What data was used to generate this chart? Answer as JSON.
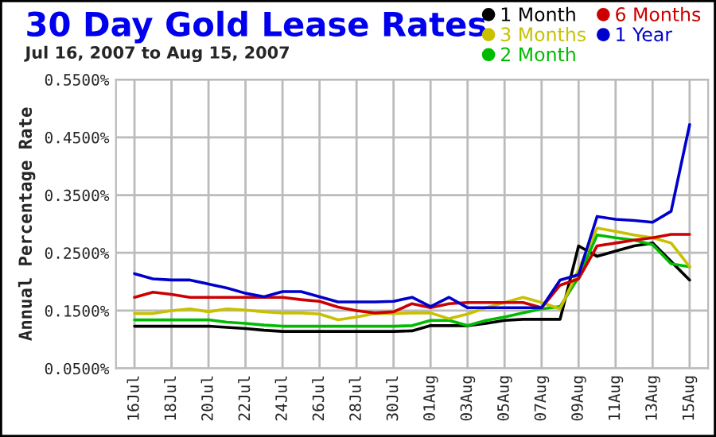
{
  "chart_data": {
    "type": "line",
    "title": "30 Day Gold Lease Rates",
    "subtitle": "Jul 16, 2007 to Aug 15, 2007",
    "ylabel": "Annual Percentage Rate",
    "x": [
      "2007-07-16",
      "2007-07-17",
      "2007-07-18",
      "2007-07-19",
      "2007-07-20",
      "2007-07-21",
      "2007-07-22",
      "2007-07-23",
      "2007-07-24",
      "2007-07-25",
      "2007-07-26",
      "2007-07-27",
      "2007-07-28",
      "2007-07-29",
      "2007-07-30",
      "2007-07-31",
      "2007-08-01",
      "2007-08-02",
      "2007-08-03",
      "2007-08-04",
      "2007-08-05",
      "2007-08-06",
      "2007-08-07",
      "2007-08-08",
      "2007-08-09",
      "2007-08-10",
      "2007-08-11",
      "2007-08-12",
      "2007-08-13",
      "2007-08-14",
      "2007-08-15"
    ],
    "series": [
      {
        "name": "1 Month",
        "color": "#000000",
        "values": [
          0.123,
          0.123,
          0.123,
          0.123,
          0.123,
          0.121,
          0.119,
          0.116,
          0.114,
          0.114,
          0.114,
          0.114,
          0.114,
          0.114,
          0.114,
          0.115,
          0.124,
          0.124,
          0.124,
          0.128,
          0.133,
          0.135,
          0.135,
          0.135,
          0.262,
          0.244,
          0.253,
          0.262,
          0.267,
          0.235,
          0.203
        ]
      },
      {
        "name": "2 Month",
        "color": "#00bb00",
        "values": [
          0.134,
          0.134,
          0.134,
          0.134,
          0.134,
          0.13,
          0.128,
          0.125,
          0.123,
          0.123,
          0.123,
          0.123,
          0.123,
          0.123,
          0.123,
          0.124,
          0.133,
          0.133,
          0.124,
          0.133,
          0.139,
          0.146,
          0.153,
          0.157,
          0.208,
          0.281,
          0.276,
          0.272,
          0.264,
          0.231,
          0.226
        ]
      },
      {
        "name": "3 Months",
        "color": "#c8c000",
        "values": [
          0.145,
          0.145,
          0.15,
          0.153,
          0.148,
          0.153,
          0.151,
          0.148,
          0.146,
          0.146,
          0.144,
          0.134,
          0.139,
          0.145,
          0.145,
          0.146,
          0.146,
          0.136,
          0.144,
          0.155,
          0.164,
          0.173,
          0.164,
          0.153,
          0.221,
          0.293,
          0.287,
          0.281,
          0.276,
          0.267,
          0.226
        ]
      },
      {
        "name": "6 Months",
        "color": "#cc0000",
        "values": [
          0.173,
          0.182,
          0.178,
          0.173,
          0.173,
          0.173,
          0.173,
          0.173,
          0.173,
          0.169,
          0.166,
          0.156,
          0.15,
          0.146,
          0.148,
          0.162,
          0.155,
          0.162,
          0.164,
          0.164,
          0.164,
          0.164,
          0.155,
          0.194,
          0.205,
          0.262,
          0.267,
          0.272,
          0.276,
          0.282,
          0.282
        ]
      },
      {
        "name": "1 Year",
        "color": "#0000cc",
        "values": [
          0.214,
          0.205,
          0.203,
          0.203,
          0.196,
          0.189,
          0.18,
          0.174,
          0.183,
          0.183,
          0.174,
          0.165,
          0.165,
          0.165,
          0.166,
          0.173,
          0.157,
          0.173,
          0.155,
          0.155,
          0.155,
          0.155,
          0.155,
          0.203,
          0.212,
          0.313,
          0.308,
          0.306,
          0.303,
          0.322,
          0.472
        ]
      }
    ],
    "xlim": [
      "2007-07-15",
      "2007-08-16"
    ],
    "xticks": [
      {
        "value": "2007-07-16",
        "label": "16Jul"
      },
      {
        "value": "2007-07-18",
        "label": "18Jul"
      },
      {
        "value": "2007-07-20",
        "label": "20Jul"
      },
      {
        "value": "2007-07-22",
        "label": "22Jul"
      },
      {
        "value": "2007-07-24",
        "label": "24Jul"
      },
      {
        "value": "2007-07-26",
        "label": "26Jul"
      },
      {
        "value": "2007-07-28",
        "label": "28Jul"
      },
      {
        "value": "2007-07-30",
        "label": "30Jul"
      },
      {
        "value": "2007-08-01",
        "label": "01Aug"
      },
      {
        "value": "2007-08-03",
        "label": "03Aug"
      },
      {
        "value": "2007-08-05",
        "label": "05Aug"
      },
      {
        "value": "2007-08-07",
        "label": "07Aug"
      },
      {
        "value": "2007-08-09",
        "label": "09Aug"
      },
      {
        "value": "2007-08-11",
        "label": "11Aug"
      },
      {
        "value": "2007-08-13",
        "label": "13Aug"
      },
      {
        "value": "2007-08-15",
        "label": "15Aug"
      }
    ],
    "ylim": [
      0.05,
      0.55
    ],
    "yticks": [
      {
        "value": 0.05,
        "label": "0.0500%"
      },
      {
        "value": 0.15,
        "label": "0.1500%"
      },
      {
        "value": 0.25,
        "label": "0.2500%"
      },
      {
        "value": 0.35,
        "label": "0.3500%"
      },
      {
        "value": 0.45,
        "label": "0.4500%"
      },
      {
        "value": 0.55,
        "label": "0.5500%"
      }
    ],
    "grid": true,
    "legend": "top right"
  }
}
